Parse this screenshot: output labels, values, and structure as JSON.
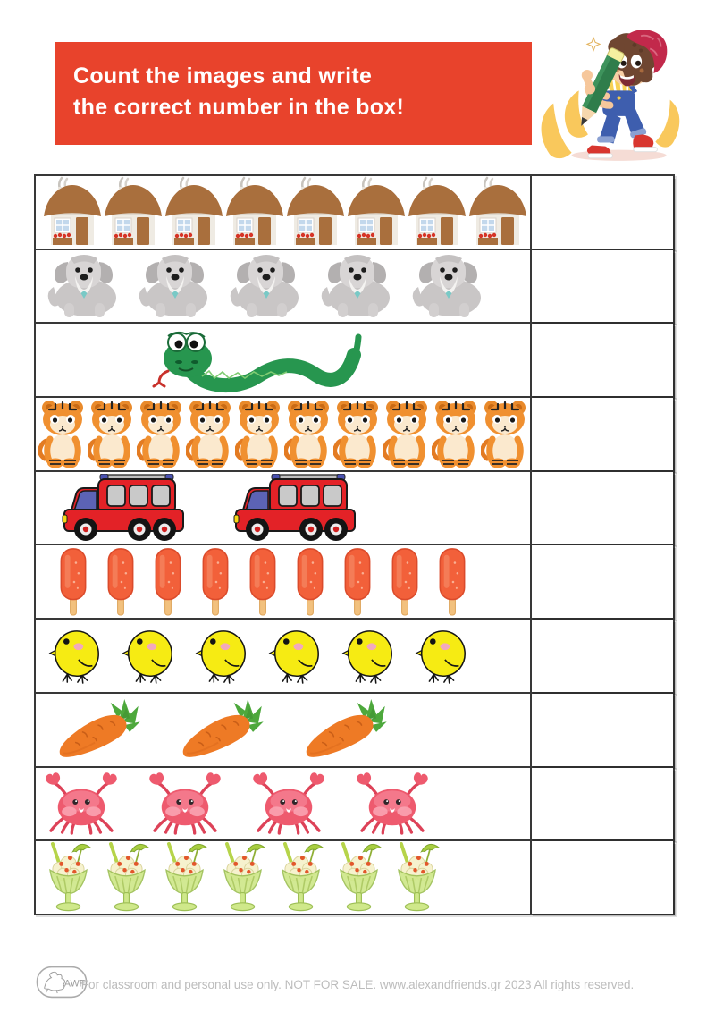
{
  "header": {
    "title_line1": "Count the images and write",
    "title_line2": "the correct number in the box!",
    "banner_color": "#E8432C",
    "mascot": "boy-with-giant-pencil"
  },
  "worksheet": {
    "rows": [
      {
        "item": "house",
        "count": 8,
        "answer": ""
      },
      {
        "item": "dog",
        "count": 5,
        "answer": ""
      },
      {
        "item": "snake",
        "count": 1,
        "answer": ""
      },
      {
        "item": "tiger",
        "count": 10,
        "answer": ""
      },
      {
        "item": "fire-truck",
        "count": 2,
        "answer": ""
      },
      {
        "item": "popsicle",
        "count": 9,
        "answer": ""
      },
      {
        "item": "chick",
        "count": 6,
        "answer": ""
      },
      {
        "item": "carrot",
        "count": 3,
        "answer": ""
      },
      {
        "item": "crab",
        "count": 4,
        "answer": ""
      },
      {
        "item": "sundae",
        "count": 7,
        "answer": ""
      }
    ]
  },
  "footer": {
    "logo_text": "AWF",
    "text": "For classroom and personal use only. NOT FOR SALE. www.alexandfriends.gr 2023  All rights reserved."
  }
}
